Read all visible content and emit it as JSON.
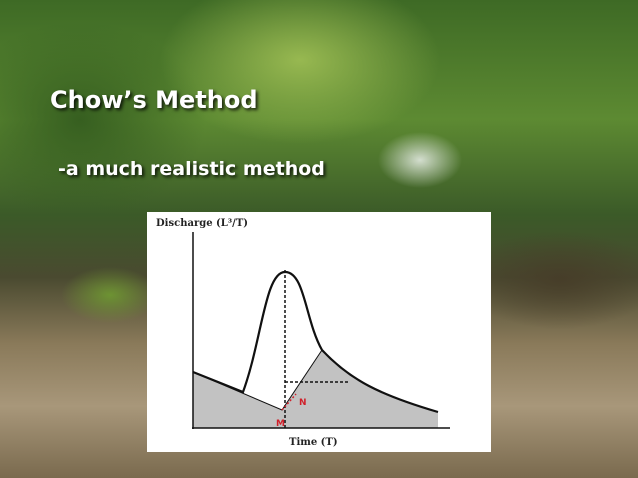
{
  "slide": {
    "title": "Chow’s Method",
    "subtitle": "-a much realistic method"
  },
  "diagram": {
    "y_axis_label": "Discharge (L³/T)",
    "x_axis_label": "Time (T)",
    "point_labels": [
      "M",
      "N"
    ]
  }
}
